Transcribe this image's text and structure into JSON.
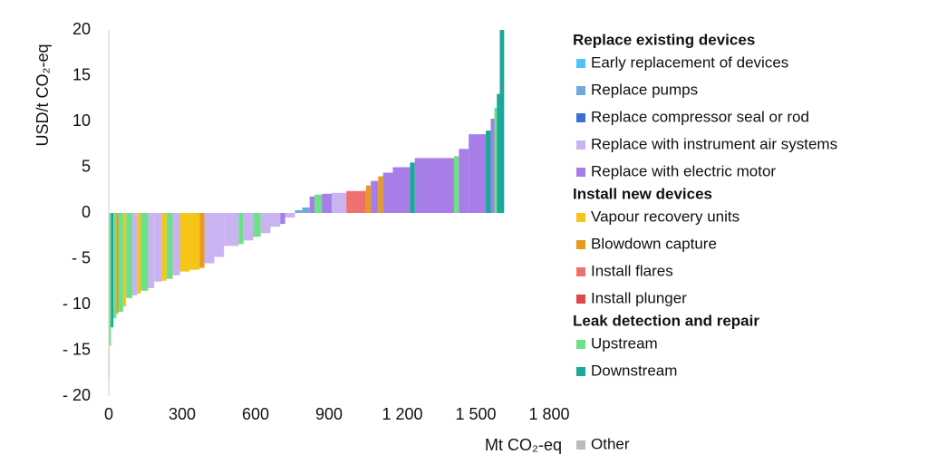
{
  "chart_data": {
    "type": "macc",
    "x_label": "Mt CO₂-eq",
    "y_label": "USD/t CO₂-eq",
    "xlim": [
      0,
      1800
    ],
    "ylim": [
      -20,
      20
    ],
    "xticks": [
      0,
      300,
      600,
      900,
      {
        "value": 1200,
        "label": "1 200"
      },
      {
        "value": 1500,
        "label": "1 500"
      },
      {
        "value": 1800,
        "label": "1 800"
      }
    ],
    "yticks": [
      {
        "value": -20,
        "label": "- 20"
      },
      {
        "value": -15,
        "label": "- 15"
      },
      {
        "value": -10,
        "label": "- 10"
      },
      {
        "value": -5,
        "label": "- 5"
      },
      0,
      5,
      10,
      15,
      20
    ],
    "segments": [
      {
        "width": 3,
        "value": -18,
        "color": "#bbbbbb"
      },
      {
        "width": 6,
        "value": -14.5,
        "color": "#6ee08a"
      },
      {
        "width": 10,
        "value": -12.5,
        "color": "#1aa89a"
      },
      {
        "width": 12,
        "value": -11.5,
        "color": "#6ee08a"
      },
      {
        "width": 8,
        "value": -11,
        "color": "#e89a1c"
      },
      {
        "width": 20,
        "value": -10.8,
        "color": "#6ee08a"
      },
      {
        "width": 12,
        "value": -10.2,
        "color": "#f5c518"
      },
      {
        "width": 25,
        "value": -9.3,
        "color": "#6ee08a"
      },
      {
        "width": 20,
        "value": -9,
        "color": "#c9b3f0"
      },
      {
        "width": 15,
        "value": -8.8,
        "color": "#f5c518"
      },
      {
        "width": 30,
        "value": -8.5,
        "color": "#6ee08a"
      },
      {
        "width": 25,
        "value": -8.2,
        "color": "#c9b3f0"
      },
      {
        "width": 30,
        "value": -7.5,
        "color": "#c9b3f0"
      },
      {
        "width": 20,
        "value": -7.4,
        "color": "#f5c518"
      },
      {
        "width": 25,
        "value": -7.2,
        "color": "#6ee08a"
      },
      {
        "width": 30,
        "value": -6.8,
        "color": "#c9b3f0"
      },
      {
        "width": 40,
        "value": -6.4,
        "color": "#f5c518"
      },
      {
        "width": 40,
        "value": -6.2,
        "color": "#f5c518"
      },
      {
        "width": 20,
        "value": -6,
        "color": "#e89a1c"
      },
      {
        "width": 40,
        "value": -5.5,
        "color": "#c9b3f0"
      },
      {
        "width": 40,
        "value": -4.8,
        "color": "#c9b3f0"
      },
      {
        "width": 60,
        "value": -3.6,
        "color": "#c9b3f0"
      },
      {
        "width": 20,
        "value": -3.4,
        "color": "#6ee08a"
      },
      {
        "width": 40,
        "value": -3,
        "color": "#c9b3f0"
      },
      {
        "width": 30,
        "value": -2.6,
        "color": "#6ee08a"
      },
      {
        "width": 40,
        "value": -2.2,
        "color": "#c9b3f0"
      },
      {
        "width": 40,
        "value": -1.5,
        "color": "#c9b3f0"
      },
      {
        "width": 20,
        "value": -1.2,
        "color": "#a77de8"
      },
      {
        "width": 40,
        "value": -0.5,
        "color": "#c9b3f0"
      },
      {
        "width": 30,
        "value": 0.3,
        "color": "#6fa8dc"
      },
      {
        "width": 30,
        "value": 0.6,
        "color": "#6fa8dc"
      },
      {
        "width": 20,
        "value": 1.8,
        "color": "#a77de8"
      },
      {
        "width": 30,
        "value": 2,
        "color": "#6ee08a"
      },
      {
        "width": 40,
        "value": 2.1,
        "color": "#a77de8"
      },
      {
        "width": 60,
        "value": 2.2,
        "color": "#c9b3f0"
      },
      {
        "width": 80,
        "value": 2.4,
        "color": "#f07070"
      },
      {
        "width": 20,
        "value": 3,
        "color": "#e89a1c"
      },
      {
        "width": 30,
        "value": 3.5,
        "color": "#a77de8"
      },
      {
        "width": 20,
        "value": 4,
        "color": "#e89a1c"
      },
      {
        "width": 40,
        "value": 4.4,
        "color": "#a77de8"
      },
      {
        "width": 70,
        "value": 5,
        "color": "#a77de8"
      },
      {
        "width": 20,
        "value": 5.5,
        "color": "#1aa89a"
      },
      {
        "width": 160,
        "value": 6,
        "color": "#a77de8"
      },
      {
        "width": 20,
        "value": 6.2,
        "color": "#6ee08a"
      },
      {
        "width": 40,
        "value": 7,
        "color": "#a77de8"
      },
      {
        "width": 70,
        "value": 8.6,
        "color": "#a77de8"
      },
      {
        "width": 20,
        "value": 9,
        "color": "#1aa89a"
      },
      {
        "width": 15,
        "value": 10.3,
        "color": "#a77de8"
      },
      {
        "width": 10,
        "value": 11.5,
        "color": "#6ee08a"
      },
      {
        "width": 12,
        "value": 13,
        "color": "#1aa89a"
      },
      {
        "width": 18,
        "value": 20,
        "color": "#1aa89a"
      }
    ],
    "legend": {
      "groups": [
        {
          "title": "Replace existing devices",
          "items": [
            {
              "name": "Early replacement of devices",
              "color": "#4fc3f7"
            },
            {
              "name": "Replace pumps",
              "color": "#6fa8dc"
            },
            {
              "name": "Replace compressor seal or rod",
              "color": "#3a6fd8"
            },
            {
              "name": "Replace with instrument air systems",
              "color": "#c9b3f0"
            },
            {
              "name": "Replace with electric motor",
              "color": "#a77de8"
            }
          ]
        },
        {
          "title": "Install new devices",
          "items": [
            {
              "name": "Vapour recovery units",
              "color": "#f5c518"
            },
            {
              "name": "Blowdown capture",
              "color": "#e89a1c"
            },
            {
              "name": "Install flares",
              "color": "#f07070"
            },
            {
              "name": "Install plunger",
              "color": "#e04848"
            }
          ]
        },
        {
          "title": "Leak detection and repair",
          "items": [
            {
              "name": "Upstream",
              "color": "#6ee08a"
            },
            {
              "name": "Downstream",
              "color": "#1aa89a"
            }
          ]
        }
      ],
      "other": {
        "name": "Other",
        "color": "#bbbbbb"
      }
    }
  }
}
